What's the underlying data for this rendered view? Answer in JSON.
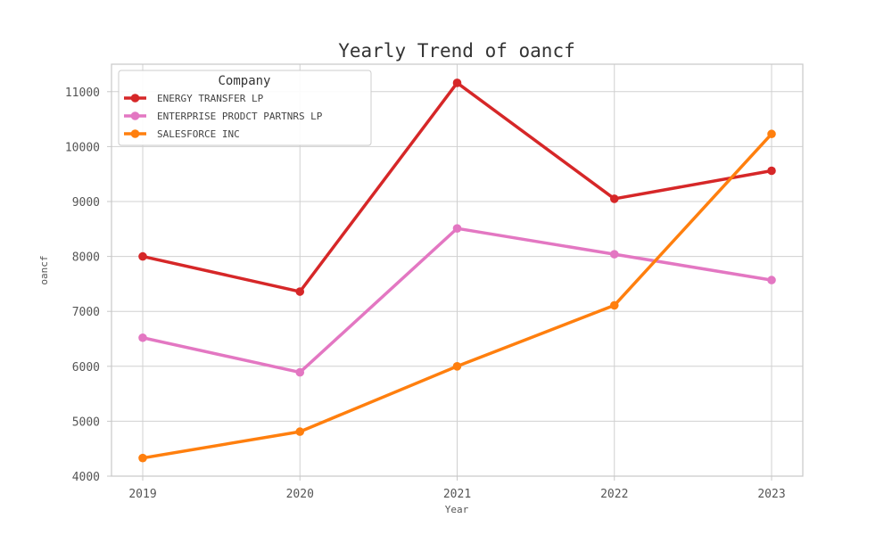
{
  "chart_data": {
    "type": "line",
    "title": "Yearly Trend of oancf",
    "xlabel": "Year",
    "ylabel": "oancf",
    "x": [
      "2019",
      "2020",
      "2021",
      "2022",
      "2023"
    ],
    "ylim": [
      4000,
      11500
    ],
    "yticks": [
      "4000",
      "5000",
      "6000",
      "7000",
      "8000",
      "9000",
      "10000",
      "11000"
    ],
    "grid": true,
    "legend": {
      "title": "Company",
      "placement": "top-left"
    },
    "series": [
      {
        "name": "ENERGY TRANSFER LP",
        "color": "#d62728",
        "values": [
          8000,
          7360,
          11160,
          9050,
          9560
        ]
      },
      {
        "name": "ENTERPRISE PRODCT PARTNRS LP",
        "color": "#e377c2",
        "values": [
          6520,
          5890,
          8510,
          8040,
          7570
        ]
      },
      {
        "name": "SALESFORCE INC",
        "color": "#ff7f0e",
        "values": [
          4330,
          4810,
          6000,
          7110,
          10230
        ]
      }
    ]
  }
}
